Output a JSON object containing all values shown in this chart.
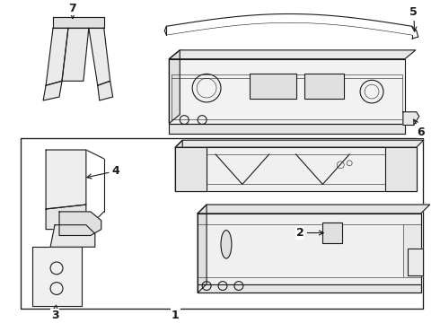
{
  "bg_color": "#ffffff",
  "lc": "#1a1a1a",
  "lw": 0.8,
  "tlw": 0.4,
  "fig_width": 4.9,
  "fig_height": 3.6,
  "dpi": 100
}
